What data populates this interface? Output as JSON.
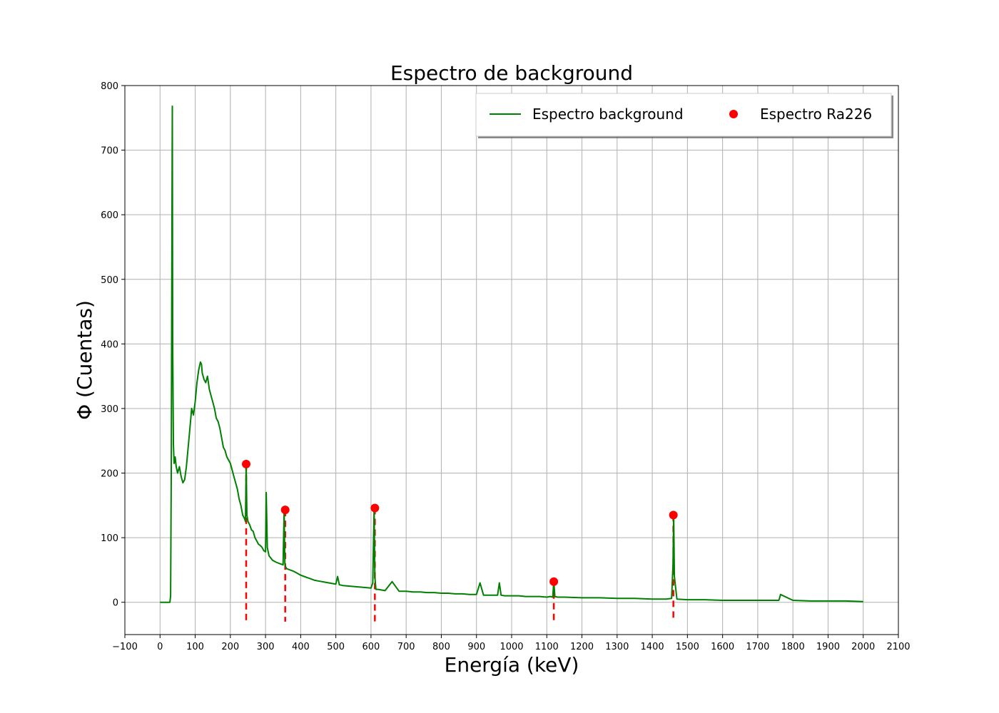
{
  "chart_data": {
    "type": "line",
    "title": "Espectro de background",
    "xlabel": "Energía (keV)",
    "ylabel": "Φ (Cuentas)",
    "xlim": [
      -100,
      2100
    ],
    "ylim": [
      -50,
      800
    ],
    "xticks": [
      "−100",
      "0",
      "100",
      "200",
      "300",
      "400",
      "500",
      "600",
      "700",
      "800",
      "900",
      "1000",
      "1100",
      "1200",
      "1300",
      "1400",
      "1500",
      "1600",
      "1700",
      "1800",
      "1900",
      "2000",
      "2100"
    ],
    "yticks": [
      "0",
      "100",
      "200",
      "300",
      "400",
      "500",
      "600",
      "700",
      "800"
    ],
    "grid": true,
    "legend_position": "top-right",
    "legend": [
      "Espectro background",
      "Espectro Ra226"
    ],
    "series": [
      {
        "name": "Espectro background",
        "kind": "line",
        "color": "#008000",
        "x": [
          0,
          15,
          28,
          30,
          32,
          34,
          35,
          36,
          38,
          40,
          43,
          46,
          50,
          55,
          60,
          65,
          70,
          75,
          80,
          85,
          90,
          95,
          100,
          105,
          110,
          115,
          118,
          120,
          125,
          130,
          135,
          140,
          145,
          150,
          155,
          160,
          165,
          170,
          175,
          180,
          185,
          190,
          195,
          200,
          205,
          210,
          215,
          220,
          225,
          230,
          235,
          240,
          243,
          245,
          247,
          250,
          255,
          260,
          265,
          270,
          275,
          280,
          285,
          290,
          295,
          300,
          302,
          305,
          310,
          320,
          330,
          340,
          350,
          353,
          355,
          357,
          360,
          370,
          380,
          390,
          400,
          410,
          420,
          430,
          440,
          450,
          460,
          470,
          480,
          490,
          500,
          505,
          510,
          520,
          540,
          560,
          580,
          600,
          605,
          609,
          611,
          614,
          620,
          640,
          660,
          680,
          700,
          720,
          740,
          760,
          780,
          800,
          820,
          840,
          860,
          880,
          900,
          910,
          920,
          940,
          960,
          965,
          970,
          980,
          1000,
          1020,
          1040,
          1060,
          1080,
          1100,
          1110,
          1117,
          1120,
          1123,
          1130,
          1150,
          1200,
          1250,
          1300,
          1350,
          1400,
          1440,
          1455,
          1459,
          1461,
          1463,
          1470,
          1500,
          1550,
          1600,
          1650,
          1700,
          1750,
          1760,
          1765,
          1800,
          1850,
          1900,
          1950,
          2000
        ],
        "y": [
          0,
          0,
          0,
          10,
          200,
          600,
          768,
          400,
          245,
          215,
          225,
          210,
          200,
          210,
          195,
          185,
          190,
          210,
          240,
          270,
          300,
          290,
          310,
          340,
          360,
          372,
          368,
          355,
          345,
          340,
          350,
          330,
          320,
          310,
          300,
          285,
          280,
          270,
          255,
          240,
          235,
          225,
          220,
          215,
          205,
          195,
          185,
          175,
          160,
          150,
          135,
          130,
          125,
          214,
          135,
          125,
          120,
          112,
          110,
          100,
          95,
          90,
          88,
          85,
          80,
          78,
          170,
          85,
          72,
          65,
          62,
          60,
          58,
          143,
          60,
          55,
          52,
          50,
          48,
          45,
          42,
          40,
          38,
          36,
          34,
          33,
          32,
          31,
          30,
          29,
          28,
          40,
          27,
          26,
          25,
          24,
          23,
          22,
          30,
          146,
          40,
          20,
          20,
          18,
          32,
          17,
          17,
          16,
          16,
          15,
          15,
          14,
          14,
          13,
          13,
          12,
          12,
          30,
          11,
          11,
          11,
          30,
          11,
          10,
          10,
          10,
          9,
          9,
          9,
          8,
          9,
          8,
          32,
          9,
          8,
          8,
          7,
          7,
          6,
          6,
          5,
          5,
          6,
          60,
          135,
          40,
          5,
          4,
          4,
          3,
          3,
          3,
          3,
          3,
          12,
          3,
          2,
          2,
          2,
          1
        ]
      },
      {
        "name": "Espectro Ra226",
        "kind": "points",
        "color": "#ff0000",
        "x": [
          245,
          356,
          611,
          1120,
          1460
        ],
        "y": [
          214,
          143,
          146,
          32,
          135
        ]
      }
    ],
    "reference_lines": {
      "style": "dashed",
      "color": "#ff0000",
      "x": [
        245,
        356,
        611,
        1120,
        1460
      ],
      "y_from": -30
    }
  }
}
